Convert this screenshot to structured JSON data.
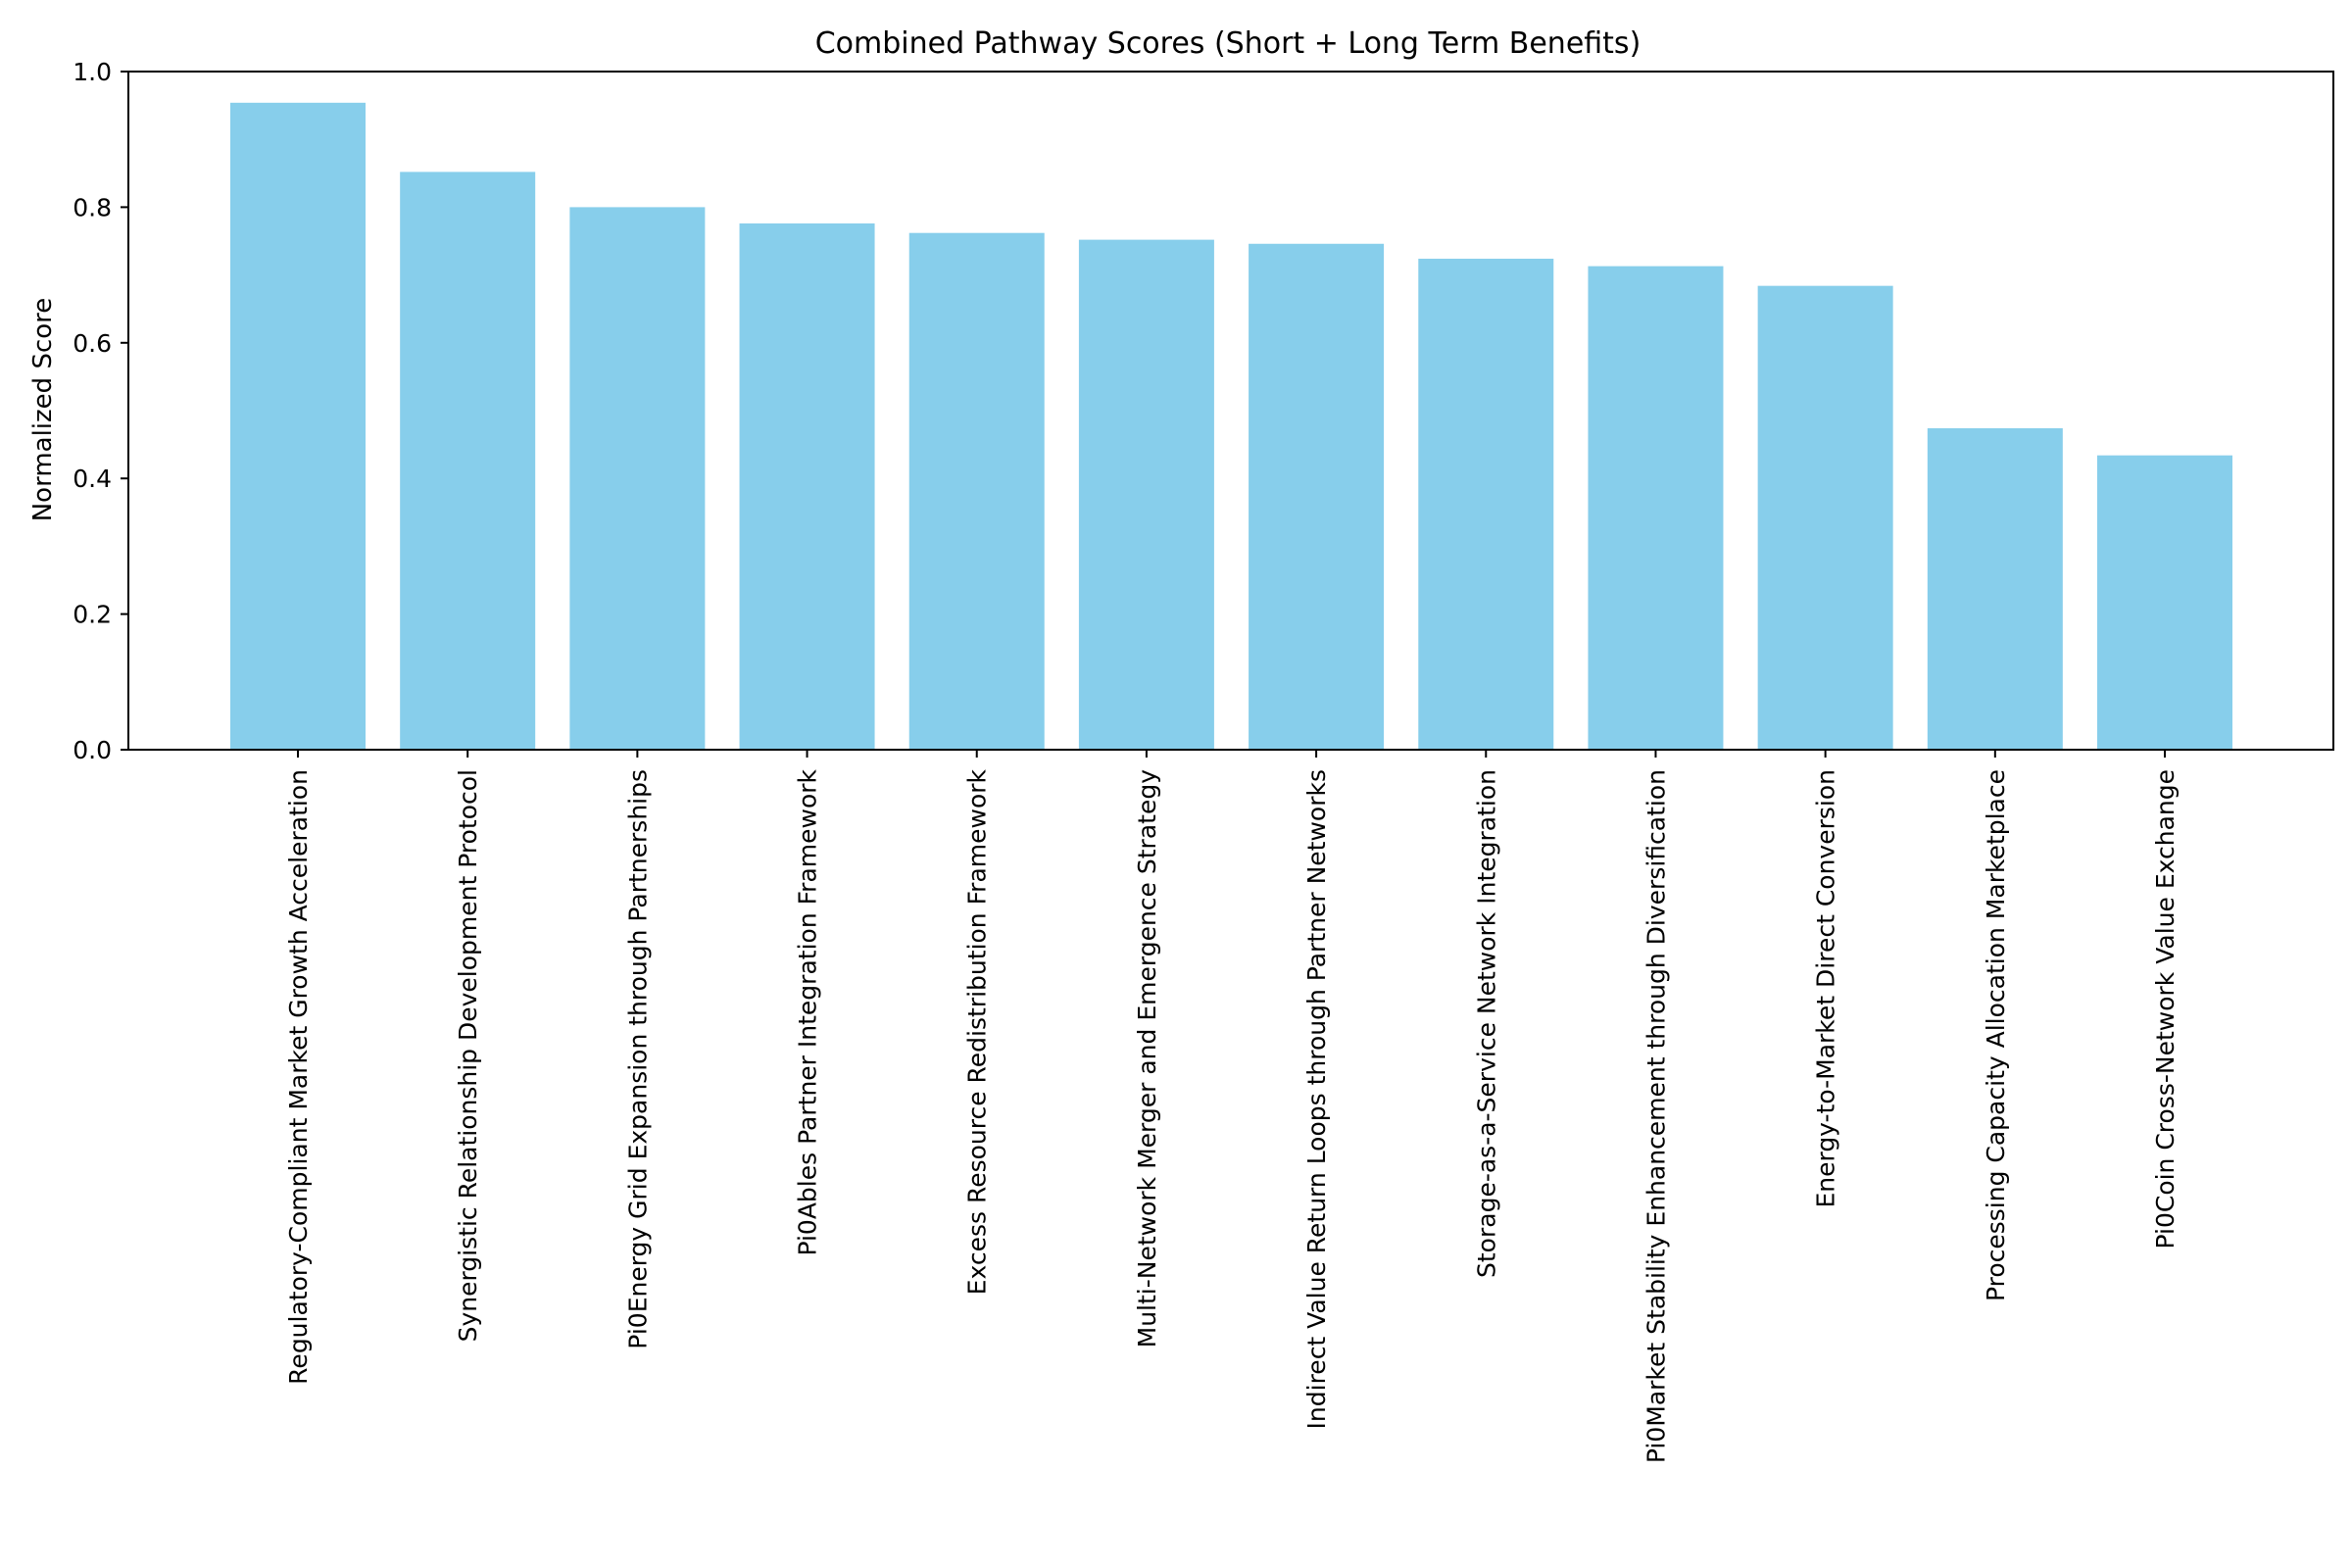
{
  "chart_data": {
    "type": "bar",
    "title": "Combined Pathway Scores (Short + Long Term Benefits)",
    "xlabel": "",
    "ylabel": "Normalized Score",
    "ylim": [
      0,
      1.0
    ],
    "yticks": [
      "0.0",
      "0.2",
      "0.4",
      "0.6",
      "0.8",
      "1.0"
    ],
    "ytick_values": [
      0.0,
      0.2,
      0.4,
      0.6,
      0.8,
      1.0
    ],
    "grid": false,
    "bar_color": "#87CEEB",
    "categories": [
      "Regulatory-Compliant Market Growth Acceleration",
      "Synergistic Relationship Development Protocol",
      "Pi0Energy Grid Expansion through Partnerships",
      "Pi0Ables Partner Integration Framework",
      "Excess Resource Redistribution Framework",
      "Multi-Network Merger and Emergence Strategy",
      "Indirect Value Return Loops through Partner Networks",
      "Storage-as-a-Service Network Integration",
      "Pi0Market Stability Enhancement through Diversification",
      "Energy-to-Market Direct Conversion",
      "Processing Capacity Allocation Marketplace",
      "Pi0Coin Cross-Network Value Exchange"
    ],
    "values": [
      0.954,
      0.852,
      0.8,
      0.776,
      0.762,
      0.752,
      0.746,
      0.724,
      0.713,
      0.684,
      0.474,
      0.434
    ]
  }
}
